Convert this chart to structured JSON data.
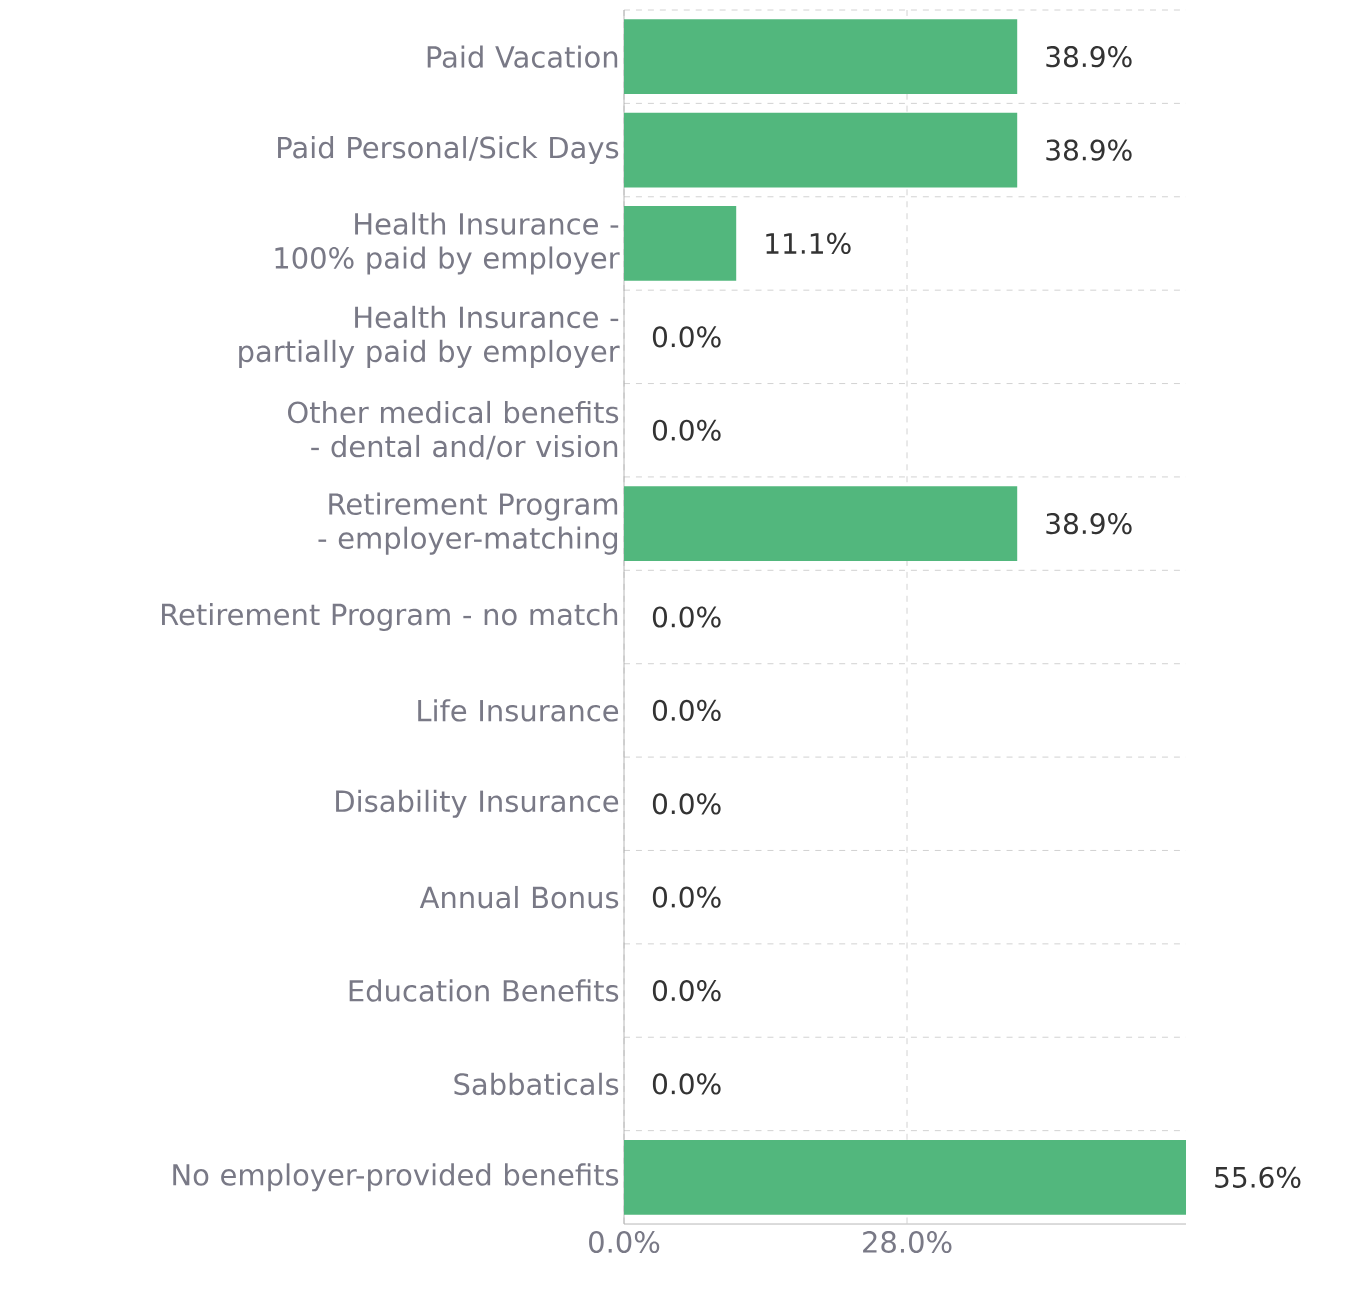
{
  "chart_data": {
    "type": "bar",
    "orientation": "horizontal",
    "categories": [
      "Paid Vacation",
      "Paid Personal/Sick Days",
      "Health Insurance - 100% paid by employer",
      "Health Insurance - partially paid by employer",
      "Other medical benefits - dental and/or vision",
      "Retirement Program - employer-matching",
      "Retirement Program - no match",
      "Life Insurance",
      "Disability Insurance",
      "Annual Bonus",
      "Education Benefits",
      "Sabbaticals",
      "No employer-provided benefits"
    ],
    "values": [
      38.9,
      38.9,
      11.1,
      0,
      0,
      38.9,
      0,
      0,
      0,
      0,
      0,
      0,
      55.6
    ],
    "value_labels": [
      "38.9%",
      "38.9%",
      "11.1%",
      "0.0%",
      "0.0%",
      "38.9%",
      "0.0%",
      "0.0%",
      "0.0%",
      "0.0%",
      "0.0%",
      "0.0%",
      "55.6%"
    ],
    "color": "#52b77d",
    "xlim": [
      0,
      55.6
    ],
    "xticks": [
      {
        "value": 0,
        "label": "0.0%"
      },
      {
        "value": 28,
        "label": "28.0%"
      }
    ],
    "grid": true
  }
}
